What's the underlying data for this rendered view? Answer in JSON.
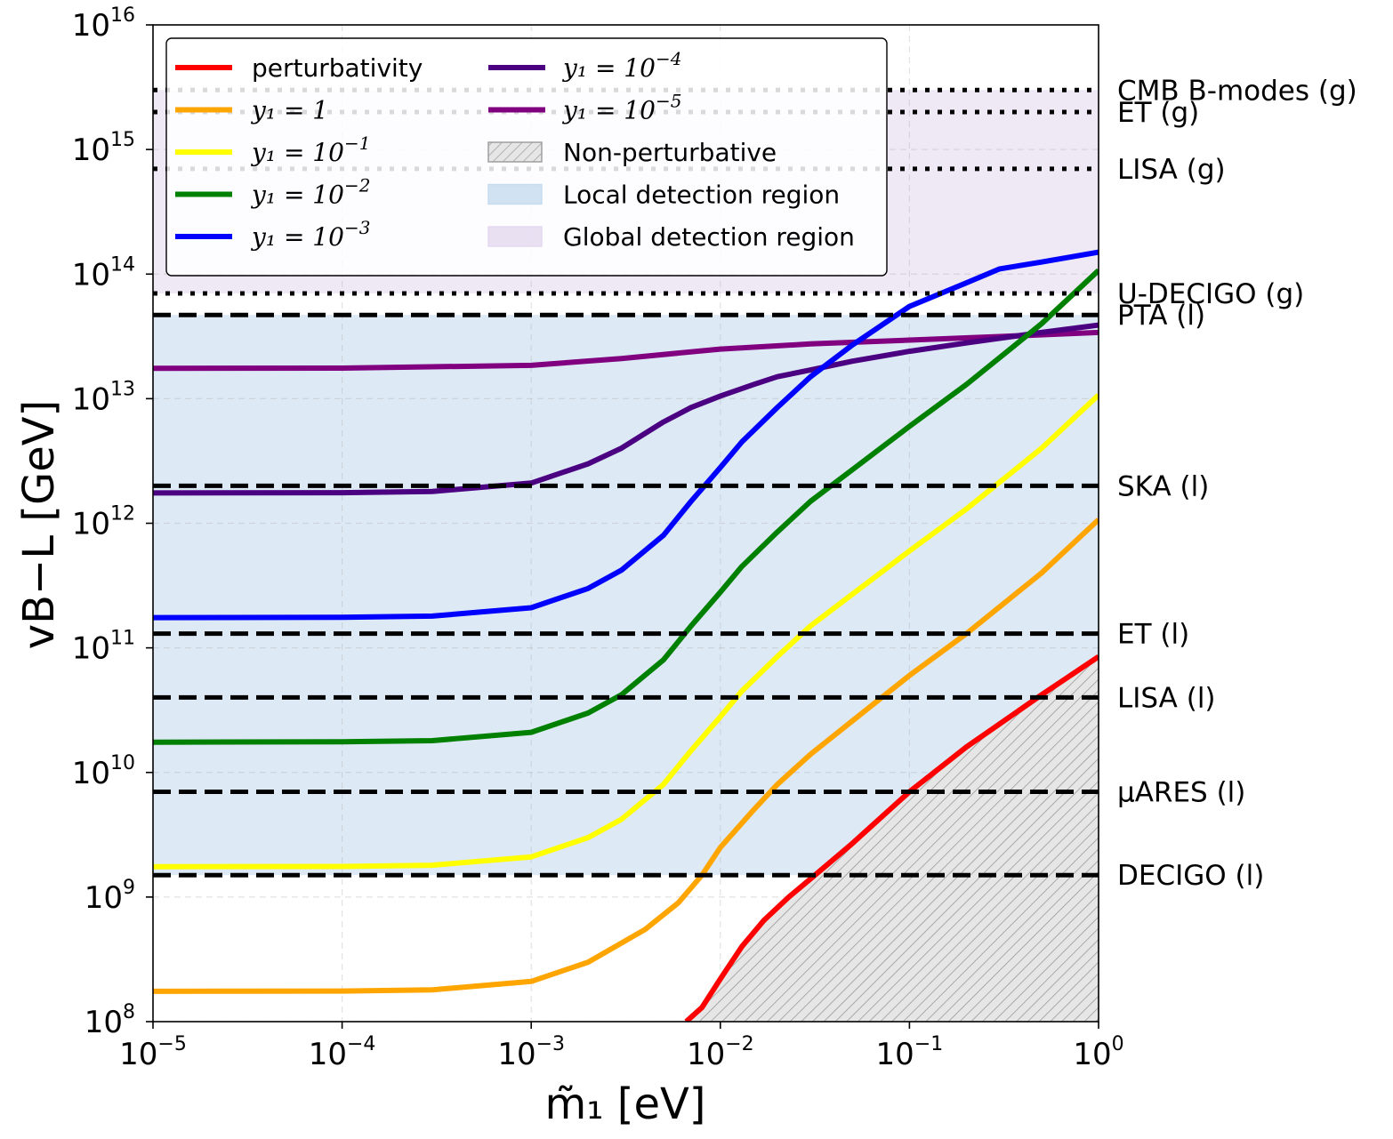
{
  "chart_data": {
    "type": "line",
    "xlabel": "m̃₁ [eV]",
    "ylabel": "vB−L [GeV]",
    "xscale": "log",
    "yscale": "log",
    "xlim": [
      1e-05,
      1
    ],
    "ylim": [
      100000000.0,
      1e+16
    ],
    "grid": true,
    "legend_location": "top-left",
    "x_ticks": [
      {
        "base": "10",
        "exp": "−5",
        "value": 1e-05
      },
      {
        "base": "10",
        "exp": "−4",
        "value": 0.0001
      },
      {
        "base": "10",
        "exp": "−3",
        "value": 0.001
      },
      {
        "base": "10",
        "exp": "−2",
        "value": 0.01
      },
      {
        "base": "10",
        "exp": "−1",
        "value": 0.1
      },
      {
        "base": "10",
        "exp": "0",
        "value": 1
      }
    ],
    "y_ticks": [
      {
        "base": "10",
        "exp": "8",
        "value": 100000000.0
      },
      {
        "base": "10",
        "exp": "9",
        "value": 1000000000.0
      },
      {
        "base": "10",
        "exp": "10",
        "value": 10000000000.0
      },
      {
        "base": "10",
        "exp": "11",
        "value": 100000000000.0
      },
      {
        "base": "10",
        "exp": "12",
        "value": 1000000000000.0
      },
      {
        "base": "10",
        "exp": "13",
        "value": 10000000000000.0
      },
      {
        "base": "10",
        "exp": "14",
        "value": 100000000000000.0
      },
      {
        "base": "10",
        "exp": "15",
        "value": 1000000000000000.0
      },
      {
        "base": "10",
        "exp": "16",
        "value": 1e+16
      }
    ],
    "series": [
      {
        "name": "perturbativity",
        "label_prefix": "perturbativity",
        "label_exp": "",
        "color": "#ff0000",
        "x": [
          0.0066,
          0.008,
          0.01,
          0.013,
          0.017,
          0.023,
          0.03,
          0.05,
          0.1,
          0.2,
          0.5,
          1.0
        ],
        "y": [
          100000000.0,
          130000000.0,
          220000000.0,
          400000000.0,
          650000000.0,
          1000000000.0,
          1400000000.0,
          2700000000.0,
          7000000000.0,
          16000000000.0,
          42000000000.0,
          85000000000.0
        ]
      },
      {
        "name": "y1 = 1",
        "label_prefix": "y₁ = 1",
        "label_exp": "",
        "color": "#ffa500",
        "x": [
          1e-05,
          0.0001,
          0.0003,
          0.001,
          0.002,
          0.004,
          0.006,
          0.008,
          0.01,
          0.015,
          0.02,
          0.03,
          0.05,
          0.1,
          0.2,
          0.5,
          1.0
        ],
        "y": [
          175000000.0,
          176000000.0,
          180000000.0,
          210000000.0,
          300000000.0,
          550000000.0,
          900000000.0,
          1500000000.0,
          2500000000.0,
          5000000000.0,
          8000000000.0,
          14000000000.0,
          26000000000.0,
          60000000000.0,
          130000000000.0,
          400000000000.0,
          1070000000000.0
        ]
      },
      {
        "name": "y1 = 10^-1",
        "label_prefix": "y₁ = 10",
        "label_exp": "−1",
        "color": "#ffff00",
        "x": [
          1e-05,
          0.0001,
          0.0003,
          0.001,
          0.002,
          0.003,
          0.005,
          0.007,
          0.01,
          0.013,
          0.02,
          0.03,
          0.05,
          0.1,
          0.2,
          0.5,
          1.0
        ],
        "y": [
          1750000000.0,
          1760000000.0,
          1800000000.0,
          2100000000.0,
          3000000000.0,
          4200000000.0,
          8000000000.0,
          15000000000.0,
          28000000000.0,
          45000000000.0,
          85000000000.0,
          150000000000.0,
          270000000000.0,
          600000000000.0,
          1300000000000.0,
          4000000000000.0,
          10700000000000.0
        ]
      },
      {
        "name": "y1 = 10^-2",
        "label_prefix": "y₁ = 10",
        "label_exp": "−2",
        "color": "#008000",
        "x": [
          1e-05,
          0.0001,
          0.0003,
          0.001,
          0.002,
          0.003,
          0.005,
          0.007,
          0.01,
          0.013,
          0.02,
          0.03,
          0.05,
          0.1,
          0.2,
          0.5,
          1.0
        ],
        "y": [
          17500000000.0,
          17600000000.0,
          18000000000.0,
          21000000000.0,
          30000000000.0,
          42000000000.0,
          80000000000.0,
          150000000000.0,
          280000000000.0,
          450000000000.0,
          850000000000.0,
          1500000000000.0,
          2700000000000.0,
          6000000000000.0,
          13000000000000.0,
          40000000000000.0,
          107000000000000.0
        ]
      },
      {
        "name": "y1 = 10^-3",
        "label_prefix": "y₁ = 10",
        "label_exp": "−3",
        "color": "#0000ff",
        "x": [
          1e-05,
          0.0001,
          0.0003,
          0.001,
          0.002,
          0.003,
          0.005,
          0.007,
          0.01,
          0.013,
          0.02,
          0.03,
          0.05,
          0.1,
          0.2,
          0.3,
          0.5,
          1.0
        ],
        "y": [
          175000000000.0,
          176000000000.0,
          180000000000.0,
          210000000000.0,
          300000000000.0,
          420000000000.0,
          800000000000.0,
          1500000000000.0,
          2800000000000.0,
          4500000000000.0,
          8500000000000.0,
          15000000000000.0,
          27000000000000.0,
          55000000000000.0,
          85000000000000.0,
          110000000000000.0,
          125000000000000.0,
          150000000000000.0
        ]
      },
      {
        "name": "y1 = 10^-4",
        "label_prefix": "y₁ = 10",
        "label_exp": "−4",
        "color": "#4b0082",
        "x": [
          1e-05,
          0.0001,
          0.0003,
          0.001,
          0.002,
          0.003,
          0.005,
          0.007,
          0.01,
          0.015,
          0.02,
          0.03,
          0.05,
          0.1,
          0.2,
          0.5,
          1.0
        ],
        "y": [
          1750000000000.0,
          1760000000000.0,
          1800000000000.0,
          2100000000000.0,
          3000000000000.0,
          4000000000000.0,
          6500000000000.0,
          8500000000000.0,
          10500000000000.0,
          13000000000000.0,
          15000000000000.0,
          17000000000000.0,
          20000000000000.0,
          24000000000000.0,
          28000000000000.0,
          34000000000000.0,
          39000000000000.0
        ]
      },
      {
        "name": "y1 = 10^-5",
        "label_prefix": "y₁ = 10",
        "label_exp": "−5",
        "color": "#800080",
        "x": [
          1e-05,
          0.0001,
          0.001,
          0.003,
          0.01,
          0.03,
          0.1,
          0.3,
          1.0
        ],
        "y": [
          17500000000000.0,
          17600000000000.0,
          18500000000000.0,
          21000000000000.0,
          25000000000000.0,
          27500000000000.0,
          29500000000000.0,
          31500000000000.0,
          34000000000000.0
        ]
      }
    ],
    "regions": [
      {
        "name": "Non-perturbative",
        "label": "Non-perturbative",
        "color": "#d9d9d9",
        "pattern": "hatch"
      },
      {
        "name": "Local detection region",
        "label": "Local detection region",
        "color": "#c6dbef",
        "y_range": [
          1500000000.0,
          47000000000000.0
        ]
      },
      {
        "name": "Global detection region",
        "label": "Global detection region",
        "color": "#e4d8ef",
        "y_range": [
          70000000000000.0,
          3000000000000000.0
        ]
      }
    ],
    "reference_lines": [
      {
        "label": "CMB B-modes (g)",
        "value": 3000000000000000.0,
        "style": "dotted"
      },
      {
        "label": "ET (g)",
        "value": 2000000000000000.0,
        "style": "dotted"
      },
      {
        "label": "LISA (g)",
        "value": 700000000000000.0,
        "style": "dotted"
      },
      {
        "label": "U-DECIGO (g)",
        "value": 70000000000000.0,
        "style": "dotted"
      },
      {
        "label": "PTA (l)",
        "value": 47000000000000.0,
        "style": "dashed"
      },
      {
        "label": "SKA (l)",
        "value": 2000000000000.0,
        "style": "dashed"
      },
      {
        "label": "ET (l)",
        "value": 130000000000.0,
        "style": "dashed"
      },
      {
        "label": "LISA (l)",
        "value": 40000000000.0,
        "style": "dashed"
      },
      {
        "label": "μARES (l)",
        "value": 7000000000.0,
        "style": "dashed"
      },
      {
        "label": "DECIGO (l)",
        "value": 1500000000.0,
        "style": "dashed"
      }
    ]
  }
}
